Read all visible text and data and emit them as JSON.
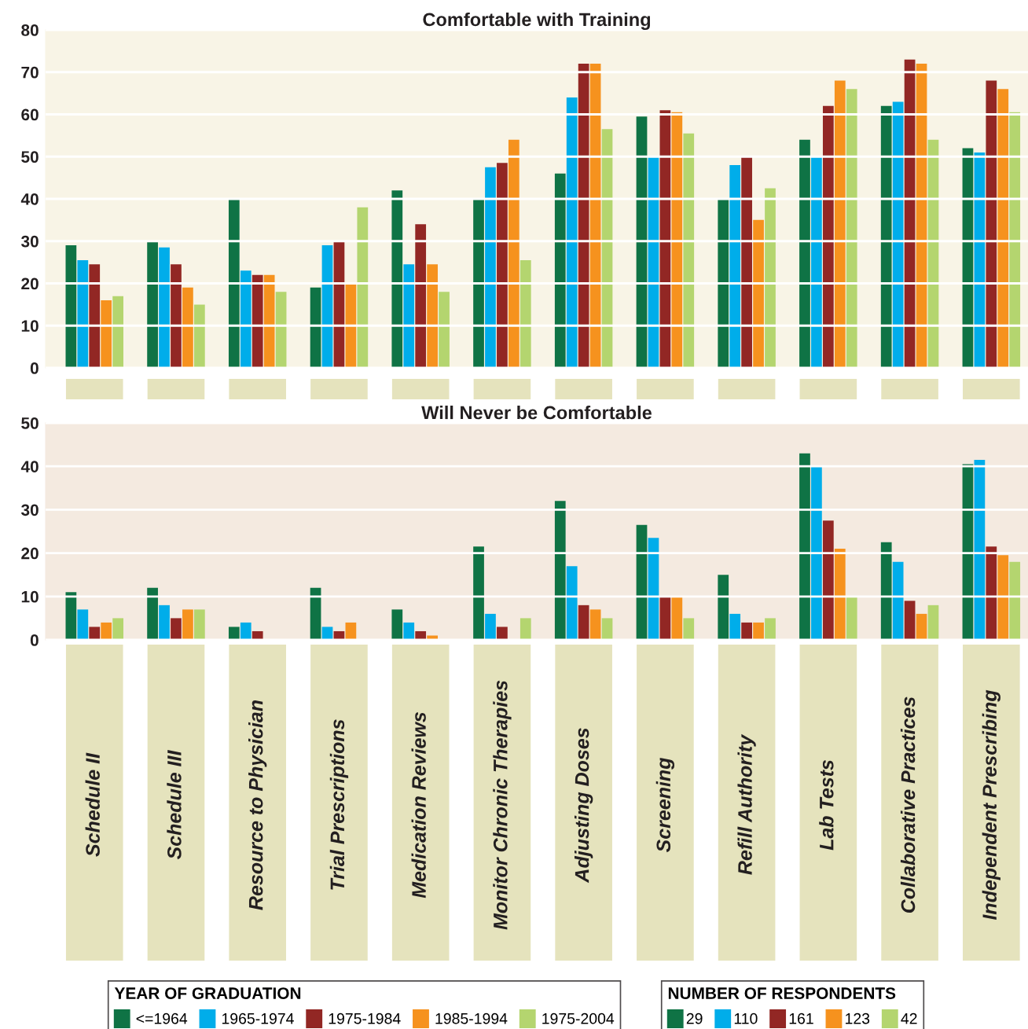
{
  "chart_data": [
    {
      "type": "bar",
      "title": "Comfortable with Training",
      "categories": [
        null,
        null,
        null,
        null,
        null,
        null,
        null,
        null,
        null,
        null,
        null,
        null
      ],
      "series": [
        {
          "color": "#0f7345",
          "values": [
            29,
            30,
            40,
            19,
            42,
            40,
            46,
            59.5,
            40,
            54,
            62,
            52
          ]
        },
        {
          "color": "#00adea",
          "values": [
            25.5,
            28.5,
            23,
            29,
            24.5,
            47.5,
            64,
            50,
            48,
            50,
            63,
            51
          ]
        },
        {
          "color": "#922724",
          "values": [
            24.5,
            24.5,
            22,
            30,
            34,
            48.5,
            72,
            61,
            50,
            62,
            73,
            68
          ]
        },
        {
          "color": "#f6921e",
          "values": [
            16,
            19,
            22,
            20,
            24.5,
            54,
            72,
            60.5,
            35,
            68,
            72,
            66
          ]
        },
        {
          "color": "#b4d56f",
          "values": [
            17,
            15,
            18,
            38,
            18,
            25.5,
            56.5,
            55.5,
            42.5,
            66,
            54,
            60.5
          ]
        }
      ],
      "ylim": [
        0,
        80
      ],
      "yticks": [
        0,
        10,
        20,
        30,
        40,
        50,
        60,
        70,
        80
      ],
      "grid": "y"
    },
    {
      "type": "bar",
      "title": "Will Never be Comfortable",
      "categories": [
        "Schedule II",
        "Schedule III",
        "Resource to Physician",
        "Trial Prescriptions",
        "Medication Reviews",
        "Monitor Chronic Therapies",
        "Adjusting Doses",
        "Screening",
        "Refill Authority",
        "Lab Tests",
        "Collaborative Practices",
        "Independent Prescribing"
      ],
      "series": [
        {
          "name": "<=1964",
          "color": "#0f7345",
          "values": [
            11,
            12,
            3,
            12,
            7,
            21.5,
            32,
            26.5,
            15,
            43,
            22.5,
            40.5
          ]
        },
        {
          "name": "1965-1974",
          "color": "#00adea",
          "values": [
            7,
            8,
            4,
            3,
            4,
            6,
            17,
            23.5,
            6,
            40,
            18,
            41.5
          ]
        },
        {
          "name": "1975-1984",
          "color": "#922724",
          "values": [
            3,
            5,
            2,
            2,
            2,
            3,
            8,
            10,
            4,
            27.5,
            9,
            21.5
          ]
        },
        {
          "name": "1985-1994",
          "color": "#f6921e",
          "values": [
            4,
            7,
            null,
            4,
            1,
            null,
            7,
            10,
            4,
            21,
            6,
            19.5
          ]
        },
        {
          "name": "1975-2004",
          "color": "#b4d56f",
          "values": [
            5,
            7,
            null,
            null,
            null,
            5,
            5,
            5,
            5,
            10,
            8,
            18
          ]
        }
      ],
      "ylim": [
        0,
        50
      ],
      "yticks": [
        0,
        10,
        20,
        30,
        40,
        50
      ],
      "grid": "y",
      "legend": "bottom",
      "legend_title": "YEAR OF GRADUATION",
      "annotations": [
        "NUMBER OF RESPONDENTS",
        "29",
        "110",
        "161",
        "123",
        "42"
      ]
    }
  ]
}
